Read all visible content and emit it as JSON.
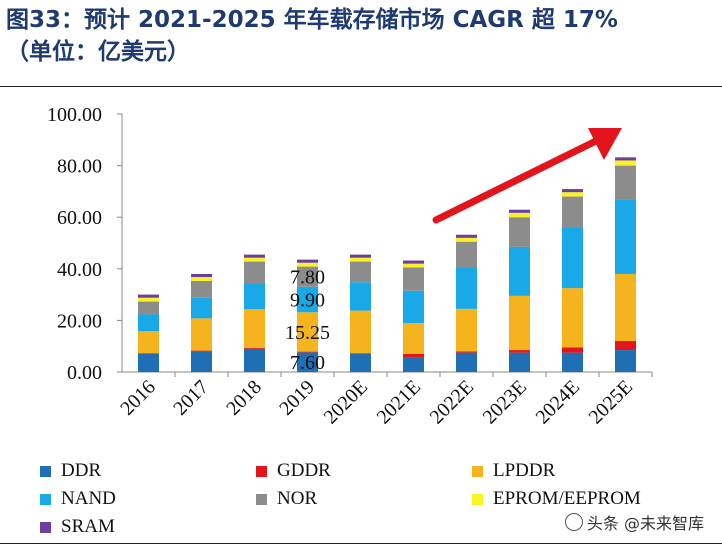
{
  "header": {
    "title_line1": "图33：预计 2021-2025 年车载存储市场 CAGR 超 17%",
    "title_line2": "（单位：亿美元）"
  },
  "chart_data": {
    "type": "bar",
    "stacked": true,
    "categories": [
      "2016",
      "2017",
      "2018",
      "2019",
      "2020E",
      "2021E",
      "2022E",
      "2023E",
      "2024E",
      "2025E"
    ],
    "ylim": [
      0,
      100
    ],
    "yticks": [
      "0.00",
      "20.00",
      "40.00",
      "60.00",
      "80.00",
      "100.00"
    ],
    "series": [
      {
        "name": "DDR",
        "color": "#1f6fb5",
        "values": [
          7.0,
          8.0,
          9.0,
          7.6,
          7.0,
          5.5,
          7.5,
          7.5,
          7.5,
          8.5
        ]
      },
      {
        "name": "GDDR",
        "color": "#e3141c",
        "values": [
          0.3,
          0.3,
          0.3,
          0.3,
          0.3,
          1.5,
          0.5,
          1.0,
          2.0,
          3.5
        ]
      },
      {
        "name": "LPDDR",
        "color": "#f5b41e",
        "values": [
          8.5,
          12.5,
          15.0,
          15.25,
          16.5,
          12.0,
          16.5,
          21.0,
          23.0,
          26.0
        ]
      },
      {
        "name": "NAND",
        "color": "#19a9e8",
        "values": [
          6.5,
          8.0,
          10.0,
          9.9,
          11.0,
          12.5,
          16.0,
          19.0,
          23.5,
          29.0
        ]
      },
      {
        "name": "NOR",
        "color": "#8c8c8c",
        "values": [
          5.0,
          6.5,
          8.5,
          7.8,
          8.0,
          9.0,
          10.0,
          11.5,
          12.0,
          13.0
        ]
      },
      {
        "name": "EPROM/EEPROM",
        "color": "#fbf225",
        "values": [
          1.5,
          1.5,
          1.5,
          1.5,
          1.5,
          1.5,
          1.5,
          1.7,
          1.7,
          2.0
        ]
      },
      {
        "name": "SRAM",
        "color": "#6b3fa0",
        "values": [
          1.2,
          1.2,
          1.2,
          1.2,
          1.2,
          1.2,
          1.2,
          1.2,
          1.2,
          1.2
        ]
      }
    ],
    "data_labels": [
      {
        "category": "2019",
        "series": "DDR",
        "text": "7.60"
      },
      {
        "category": "2019",
        "series": "LPDDR",
        "text": "15.25"
      },
      {
        "category": "2019",
        "series": "NAND",
        "text": "9.90"
      },
      {
        "category": "2019",
        "series": "NOR",
        "text": "7.80"
      }
    ],
    "annotation": {
      "type": "trend-arrow",
      "color": "#e3141c"
    },
    "legend_placement": "bottom"
  },
  "watermark": {
    "text": "头条 @未来智库"
  }
}
